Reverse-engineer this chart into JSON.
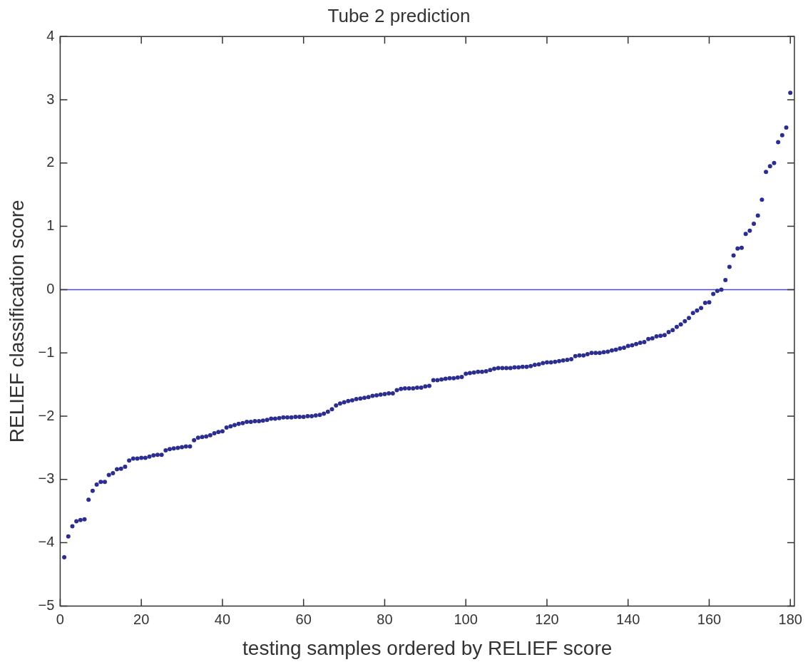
{
  "chart_data": {
    "type": "scatter",
    "title": "Tube 2 prediction",
    "xlabel": "testing samples ordered by RELIEF score",
    "ylabel": "RELIEF classification score",
    "x": [
      1,
      2,
      3,
      4,
      5,
      6,
      7,
      8,
      9,
      10,
      11,
      12,
      13,
      14,
      15,
      16,
      17,
      18,
      19,
      20,
      21,
      22,
      23,
      24,
      25,
      26,
      27,
      28,
      29,
      30,
      31,
      32,
      33,
      34,
      35,
      36,
      37,
      38,
      39,
      40,
      41,
      42,
      43,
      44,
      45,
      46,
      47,
      48,
      49,
      50,
      51,
      52,
      53,
      54,
      55,
      56,
      57,
      58,
      59,
      60,
      61,
      62,
      63,
      64,
      65,
      66,
      67,
      68,
      69,
      70,
      71,
      72,
      73,
      74,
      75,
      76,
      77,
      78,
      79,
      80,
      81,
      82,
      83,
      84,
      85,
      86,
      87,
      88,
      89,
      90,
      91,
      92,
      93,
      94,
      95,
      96,
      97,
      98,
      99,
      100,
      101,
      102,
      103,
      104,
      105,
      106,
      107,
      108,
      109,
      110,
      111,
      112,
      113,
      114,
      115,
      116,
      117,
      118,
      119,
      120,
      121,
      122,
      123,
      124,
      125,
      126,
      127,
      128,
      129,
      130,
      131,
      132,
      133,
      134,
      135,
      136,
      137,
      138,
      139,
      140,
      141,
      142,
      143,
      144,
      145,
      146,
      147,
      148,
      149,
      150,
      151,
      152,
      153,
      154,
      155,
      156,
      157,
      158,
      159,
      160,
      161,
      162,
      163,
      164,
      165,
      166,
      167,
      168,
      169,
      170,
      171,
      172,
      173,
      174,
      175,
      176,
      177,
      178,
      179,
      180
    ],
    "series": [
      {
        "color": "#2b2d8f",
        "values": [
          -4.23,
          -3.9,
          -3.74,
          -3.66,
          -3.64,
          -3.63,
          -3.32,
          -3.18,
          -3.08,
          -3.04,
          -3.04,
          -2.93,
          -2.9,
          -2.84,
          -2.83,
          -2.8,
          -2.7,
          -2.67,
          -2.67,
          -2.66,
          -2.66,
          -2.64,
          -2.62,
          -2.61,
          -2.61,
          -2.54,
          -2.52,
          -2.51,
          -2.5,
          -2.49,
          -2.48,
          -2.48,
          -2.38,
          -2.34,
          -2.33,
          -2.32,
          -2.3,
          -2.27,
          -2.25,
          -2.24,
          -2.18,
          -2.16,
          -2.14,
          -2.12,
          -2.11,
          -2.09,
          -2.09,
          -2.08,
          -2.08,
          -2.07,
          -2.06,
          -2.04,
          -2.04,
          -2.03,
          -2.02,
          -2.02,
          -2.02,
          -2.01,
          -2.01,
          -2.01,
          -2,
          -2,
          -1.99,
          -1.98,
          -1.96,
          -1.93,
          -1.89,
          -1.83,
          -1.8,
          -1.78,
          -1.76,
          -1.75,
          -1.73,
          -1.72,
          -1.71,
          -1.7,
          -1.68,
          -1.67,
          -1.66,
          -1.65,
          -1.64,
          -1.64,
          -1.59,
          -1.57,
          -1.56,
          -1.56,
          -1.56,
          -1.55,
          -1.55,
          -1.53,
          -1.52,
          -1.43,
          -1.43,
          -1.42,
          -1.41,
          -1.4,
          -1.4,
          -1.39,
          -1.38,
          -1.33,
          -1.32,
          -1.31,
          -1.3,
          -1.3,
          -1.29,
          -1.27,
          -1.25,
          -1.24,
          -1.24,
          -1.24,
          -1.24,
          -1.23,
          -1.23,
          -1.22,
          -1.22,
          -1.21,
          -1.19,
          -1.18,
          -1.16,
          -1.15,
          -1.15,
          -1.14,
          -1.13,
          -1.12,
          -1.11,
          -1.1,
          -1.05,
          -1.04,
          -1.04,
          -1.02,
          -1,
          -1,
          -1,
          -0.99,
          -0.98,
          -0.96,
          -0.95,
          -0.93,
          -0.92,
          -0.89,
          -0.88,
          -0.86,
          -0.84,
          -0.83,
          -0.78,
          -0.77,
          -0.74,
          -0.73,
          -0.72,
          -0.67,
          -0.64,
          -0.59,
          -0.55,
          -0.5,
          -0.45,
          -0.37,
          -0.33,
          -0.29,
          -0.21,
          -0.2,
          -0.07,
          -0.02,
          0,
          0.15,
          0.36,
          0.54,
          0.65,
          0.66,
          0.88,
          0.93,
          1.04,
          1.17,
          1.42,
          1.86,
          1.95,
          2,
          2.33,
          2.44,
          2.56,
          3.11
        ]
      }
    ],
    "xlim": [
      0,
      181
    ],
    "xticks": [
      0,
      20,
      40,
      60,
      80,
      100,
      120,
      140,
      160,
      180
    ],
    "ylim": [
      -5,
      4
    ],
    "yticks": [
      -5,
      -4,
      -3,
      -2,
      -1,
      0,
      1,
      2,
      3,
      4
    ],
    "ref_lines": [
      {
        "axis": "y",
        "value": 0,
        "color": "#4a4ad6"
      }
    ],
    "marker": "circle",
    "grid": false,
    "legend": false
  }
}
